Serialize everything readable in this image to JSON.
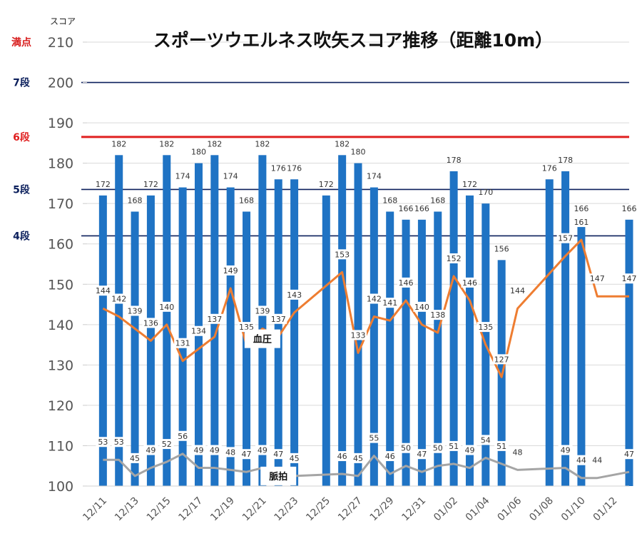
{
  "chart_data": {
    "type": "bar+line",
    "title": "スポーツウエルネス吹矢スコア推移（距離10m）",
    "ylabel": "スコア",
    "ylim": [
      100,
      210
    ],
    "yticks": [
      "100",
      "110",
      "120",
      "130",
      "140",
      "150",
      "160",
      "170",
      "180",
      "190",
      "200",
      "210"
    ],
    "grid": true,
    "xlim": [
      "12/10",
      "01/13"
    ],
    "x_tick_labels": [
      "12/11",
      "12/13",
      "12/15",
      "12/17",
      "12/19",
      "12/21",
      "12/23",
      "12/25",
      "12/27",
      "12/29",
      "12/31",
      "01/02",
      "01/04",
      "01/06",
      "01/08",
      "01/10",
      "01/12"
    ],
    "reference_lines": [
      {
        "label": "満点",
        "value": 210,
        "color": "#d81e1e"
      },
      {
        "label": "7段",
        "value": 200,
        "color": "#0b1f5c"
      },
      {
        "label": "6段",
        "value": 186.5,
        "color": "#e02020"
      },
      {
        "label": "5段",
        "value": 173.5,
        "color": "#0b1f5c"
      },
      {
        "label": "4段",
        "value": 162,
        "color": "#0b1f5c"
      }
    ],
    "series": [
      {
        "type": "bar",
        "color": "#1f73c4",
        "points": [
          {
            "x": "12/11",
            "y": 172
          },
          {
            "x": "12/12",
            "y": 182
          },
          {
            "x": "12/13",
            "y": 168
          },
          {
            "x": "12/14",
            "y": 172
          },
          {
            "x": "12/15",
            "y": 182
          },
          {
            "x": "12/16",
            "y": 174
          },
          {
            "x": "12/17",
            "y": 180
          },
          {
            "x": "12/18",
            "y": 182
          },
          {
            "x": "12/19",
            "y": 174
          },
          {
            "x": "12/20",
            "y": 168
          },
          {
            "x": "12/21",
            "y": 182
          },
          {
            "x": "12/22",
            "y": 176
          },
          {
            "x": "12/23",
            "y": 176
          },
          {
            "x": "12/25",
            "y": 172
          },
          {
            "x": "12/26",
            "y": 182
          },
          {
            "x": "12/27",
            "y": 180
          },
          {
            "x": "12/28",
            "y": 174
          },
          {
            "x": "12/29",
            "y": 168
          },
          {
            "x": "12/30",
            "y": 166
          },
          {
            "x": "12/31",
            "y": 166
          },
          {
            "x": "01/01",
            "y": 168
          },
          {
            "x": "01/02",
            "y": 178
          },
          {
            "x": "01/03",
            "y": 172
          },
          {
            "x": "01/04",
            "y": 170
          },
          {
            "x": "01/05",
            "y": 156
          },
          {
            "x": "01/08",
            "y": 176
          },
          {
            "x": "01/09",
            "y": 178
          },
          {
            "x": "01/10",
            "y": 166
          },
          {
            "x": "01/13",
            "y": 166
          }
        ]
      },
      {
        "name": "血圧",
        "type": "line",
        "color": "#ee7d31",
        "points": [
          {
            "x": "12/11",
            "y": 144
          },
          {
            "x": "12/12",
            "y": 142
          },
          {
            "x": "12/13",
            "y": 139
          },
          {
            "x": "12/14",
            "y": 136
          },
          {
            "x": "12/15",
            "y": 140
          },
          {
            "x": "12/16",
            "y": 131
          },
          {
            "x": "12/17",
            "y": 134
          },
          {
            "x": "12/18",
            "y": 137
          },
          {
            "x": "12/19",
            "y": 149
          },
          {
            "x": "12/20",
            "y": 135
          },
          {
            "x": "12/21",
            "y": 139
          },
          {
            "x": "12/22",
            "y": 137
          },
          {
            "x": "12/23",
            "y": 143
          },
          {
            "x": "12/26",
            "y": 153
          },
          {
            "x": "12/27",
            "y": 133
          },
          {
            "x": "12/28",
            "y": 142
          },
          {
            "x": "12/29",
            "y": 141
          },
          {
            "x": "12/30",
            "y": 146
          },
          {
            "x": "12/31",
            "y": 140
          },
          {
            "x": "01/01",
            "y": 138
          },
          {
            "x": "01/02",
            "y": 152
          },
          {
            "x": "01/03",
            "y": 146
          },
          {
            "x": "01/04",
            "y": 135
          },
          {
            "x": "01/05",
            "y": 127
          },
          {
            "x": "01/06",
            "y": 144
          },
          {
            "x": "01/09",
            "y": 157
          },
          {
            "x": "01/10",
            "y": 161
          },
          {
            "x": "01/11",
            "y": 147
          },
          {
            "x": "01/13",
            "y": 147
          }
        ],
        "labels": [
          {
            "x": "12/11",
            "text": "144"
          },
          {
            "x": "12/12",
            "text": "142"
          },
          {
            "x": "12/13",
            "text": "139"
          },
          {
            "x": "12/14",
            "text": "136"
          },
          {
            "x": "12/15",
            "text": "140"
          },
          {
            "x": "12/16",
            "text": "131"
          },
          {
            "x": "12/17",
            "text": "134"
          },
          {
            "x": "12/18",
            "text": "137"
          },
          {
            "x": "12/19",
            "text": "149"
          },
          {
            "x": "12/20",
            "text": "135"
          },
          {
            "x": "12/21",
            "text": "139"
          },
          {
            "x": "12/22",
            "text": "137"
          },
          {
            "x": "12/23",
            "text": "143"
          },
          {
            "x": "12/26",
            "text": "153"
          },
          {
            "x": "12/27",
            "text": "133"
          },
          {
            "x": "12/28",
            "text": "142"
          },
          {
            "x": "12/29",
            "text": "141"
          },
          {
            "x": "12/30",
            "text": "146"
          },
          {
            "x": "12/31",
            "text": "140"
          },
          {
            "x": "01/01",
            "text": "138"
          },
          {
            "x": "01/02",
            "text": "152"
          },
          {
            "x": "01/03",
            "text": "146"
          },
          {
            "x": "01/04",
            "text": "135"
          },
          {
            "x": "01/05",
            "text": "127"
          },
          {
            "x": "01/06",
            "text": "144"
          },
          {
            "x": "01/09",
            "text": "157"
          },
          {
            "x": "01/10",
            "text": "161"
          },
          {
            "x": "01/11",
            "text": "147"
          },
          {
            "x": "01/13",
            "text": "147"
          }
        ]
      },
      {
        "name": "脈拍",
        "type": "line",
        "color": "#a5a5a5",
        "points": [
          {
            "x": "12/11",
            "y": 53
          },
          {
            "x": "12/12",
            "y": 53
          },
          {
            "x": "12/13",
            "y": 45
          },
          {
            "x": "12/14",
            "y": 49
          },
          {
            "x": "12/15",
            "y": 52
          },
          {
            "x": "12/16",
            "y": 56
          },
          {
            "x": "12/17",
            "y": 49
          },
          {
            "x": "12/18",
            "y": 49
          },
          {
            "x": "12/19",
            "y": 48
          },
          {
            "x": "12/20",
            "y": 47
          },
          {
            "x": "12/21",
            "y": 49
          },
          {
            "x": "12/22",
            "y": 47
          },
          {
            "x": "12/23",
            "y": 45
          },
          {
            "x": "12/26",
            "y": 46
          },
          {
            "x": "12/27",
            "y": 45
          },
          {
            "x": "12/28",
            "y": 55
          },
          {
            "x": "12/29",
            "y": 46
          },
          {
            "x": "12/30",
            "y": 50
          },
          {
            "x": "12/31",
            "y": 47
          },
          {
            "x": "01/01",
            "y": 50
          },
          {
            "x": "01/02",
            "y": 51
          },
          {
            "x": "01/03",
            "y": 49
          },
          {
            "x": "01/04",
            "y": 54
          },
          {
            "x": "01/05",
            "y": 51
          },
          {
            "x": "01/06",
            "y": 48
          },
          {
            "x": "01/09",
            "y": 49
          },
          {
            "x": "01/10",
            "y": 44
          },
          {
            "x": "01/11",
            "y": 44
          },
          {
            "x": "01/13",
            "y": 47
          }
        ]
      }
    ]
  }
}
